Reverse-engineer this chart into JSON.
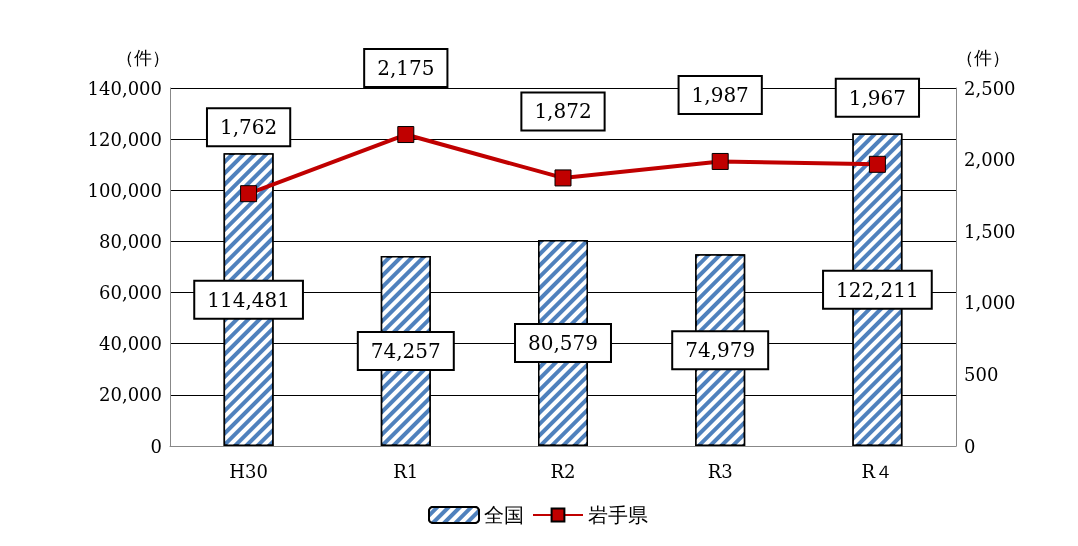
{
  "chart_data": {
    "type": "bar",
    "categories": [
      "H30",
      "R1",
      "R2",
      "R3",
      "R４"
    ],
    "series": [
      {
        "name": "全国",
        "color": "#4f81bd",
        "values": [
          114481,
          74257,
          80579,
          74979,
          122211
        ],
        "value_labels": [
          "114,481",
          "74,257",
          "80,579",
          "74,979",
          "122,211"
        ]
      },
      {
        "name": "岩手県",
        "type": "line",
        "axis": "y2",
        "color": "#c00000",
        "marker": "square",
        "values": [
          1762,
          2175,
          1872,
          1987,
          1967
        ],
        "value_labels": [
          "1,762",
          "2,175",
          "1,872",
          "1,987",
          "1,967"
        ]
      }
    ],
    "ylabel": "（件）",
    "y2label": "（件）",
    "ylim": [
      0,
      140000
    ],
    "yticks": [
      0,
      {
        "value": 20000,
        "label": "20,000"
      },
      {
        "value": 40000,
        "label": "40,000"
      },
      {
        "value": 60000,
        "label": "60,000"
      },
      {
        "value": 80000,
        "label": "80,000"
      },
      {
        "value": 100000,
        "label": "100,000"
      },
      {
        "value": 120000,
        "label": "120,000"
      },
      {
        "value": 140000,
        "label": "140,000"
      }
    ],
    "y2lim": [
      0,
      2500
    ],
    "y2ticks": [
      0,
      500,
      {
        "value": 1000,
        "label": "1,000"
      },
      {
        "value": 1500,
        "label": "1,500"
      },
      {
        "value": 2000,
        "label": "2,000"
      },
      {
        "value": 2500,
        "label": "2,500"
      }
    ],
    "grid": "y",
    "legend": "bottom"
  }
}
